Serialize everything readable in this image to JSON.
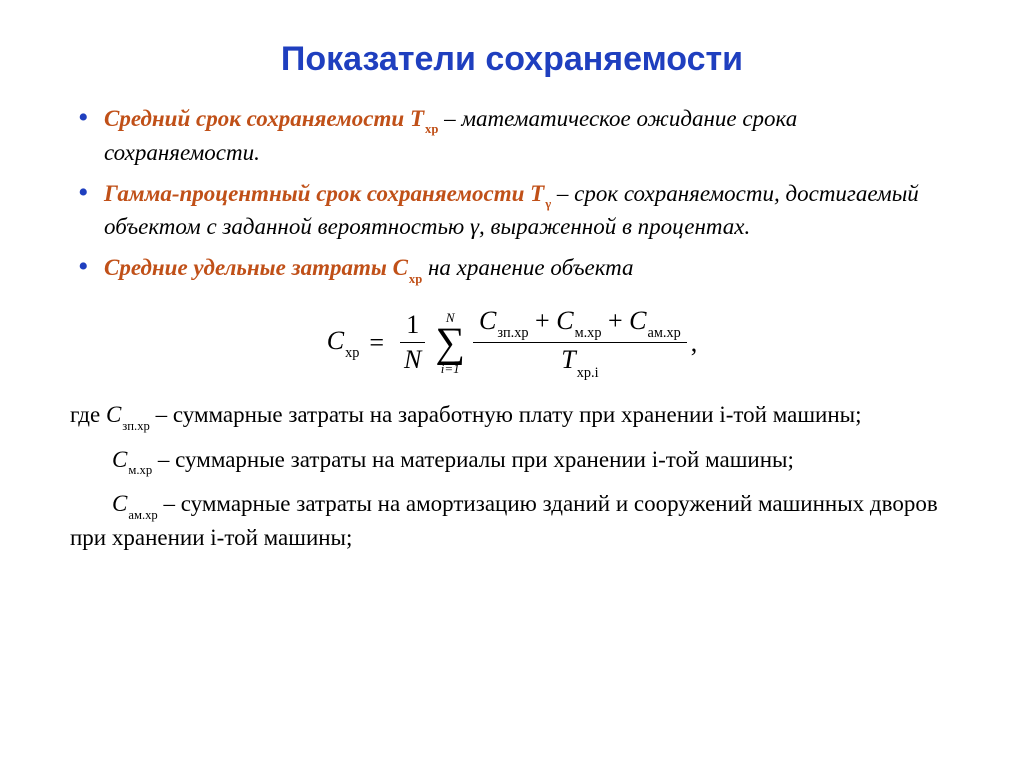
{
  "title": "Показатели сохраняемости",
  "colors": {
    "title": "#1f3fbf",
    "bullet": "#1f3fbf",
    "term": "#c05018",
    "text": "#000000",
    "background": "#ffffff"
  },
  "typography": {
    "title_fontsize": 34,
    "title_family": "Arial",
    "body_fontsize": 23,
    "body_family": "Times New Roman",
    "formula_fontsize": 26,
    "body_style": "italic"
  },
  "bullets": [
    {
      "term": "Средний срок сохраняемости",
      "sym_main": "T",
      "sym_sub": "хр",
      "text_after": " – математическое ожидание срока сохраняемости."
    },
    {
      "term": "Гамма-процентный срок сохраняемости",
      "sym_main": "T",
      "sym_sub": "γ",
      "text_after": " – срок сохраняемости, достигаемый объектом с заданной вероятностью γ, выраженной в процентах."
    },
    {
      "term": "Средние удельные затраты",
      "sym_main": "C",
      "sym_sub": "хр",
      "text_after": " на хранение объекта"
    }
  ],
  "formula": {
    "lhs_main": "C",
    "lhs_sub": "хр",
    "equals": "=",
    "frac1_num": "1",
    "frac1_den": "N",
    "sum": {
      "upper": "N",
      "lower": "i=1",
      "sigma": "∑"
    },
    "frac2": {
      "t1_main": "C",
      "t1_sub": "зп.хр",
      "plus1": "+",
      "t2_main": "C",
      "t2_sub": "м.хр",
      "plus2": "+",
      "t3_main": "C",
      "t3_sub": "ам.хр",
      "den_main": "T",
      "den_sub": "хр.i"
    },
    "tail": ","
  },
  "defs_lead": "где ",
  "defs": [
    {
      "sym_main": "C",
      "sym_sub": "зп.хр",
      "text": " – суммарные затраты на заработную плату при хранении i-той машины;"
    },
    {
      "sym_main": "C",
      "sym_sub": "м.хр",
      "text": " – суммарные затраты на материалы при хранении i-той машины;"
    },
    {
      "sym_main": "C",
      "sym_sub": "ам.хр",
      "text": " – суммарные затраты на амортизацию зданий и сооружений машинных дворов при хранении i-той машины;"
    }
  ]
}
